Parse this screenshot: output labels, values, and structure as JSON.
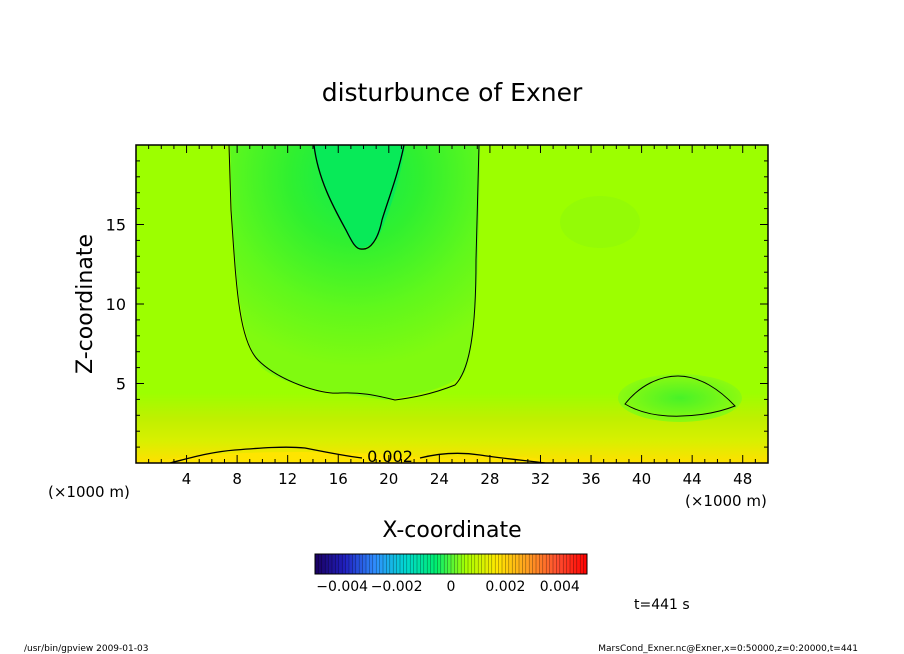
{
  "chart_data": {
    "type": "heatmap",
    "title": "disturbunce of Exner",
    "xlabel": "X-coordinate",
    "ylabel": "Z-coordinate",
    "x_unit": "(×1000 m)",
    "y_unit": "(×1000 m)",
    "xlim": [
      0,
      50
    ],
    "ylim": [
      0,
      20
    ],
    "x_ticks": [
      4,
      8,
      12,
      16,
      20,
      24,
      28,
      32,
      36,
      40,
      44,
      48
    ],
    "y_ticks": [
      5,
      10,
      15
    ],
    "x_tick_labels": [
      "4",
      "8",
      "12",
      "16",
      "20",
      "24",
      "28",
      "32",
      "36",
      "40",
      "44",
      "48"
    ],
    "y_tick_labels": [
      "5",
      "10",
      "15"
    ],
    "contour_label": "0.002",
    "colorbar": {
      "min": -0.005,
      "max": 0.005,
      "ticks": [
        -0.004,
        -0.002,
        0,
        0.002,
        0.004
      ],
      "tick_labels": [
        "−0.004",
        "−0.002",
        "0",
        "0.002",
        "0.004"
      ],
      "colors": [
        "#1a0060",
        "#2020c0",
        "#2f8fff",
        "#00d8d0",
        "#00ee70",
        "#a8ff00",
        "#ffe800",
        "#ffa020",
        "#ff5030",
        "#ff0000"
      ]
    },
    "time_label": "t=441 s",
    "grid": false
  },
  "footer": {
    "left": "/usr/bin/gpview   2009-01-03",
    "right": "MarsCond_Exner.nc@Exner,x=0:50000,z=0:20000,t=441"
  }
}
